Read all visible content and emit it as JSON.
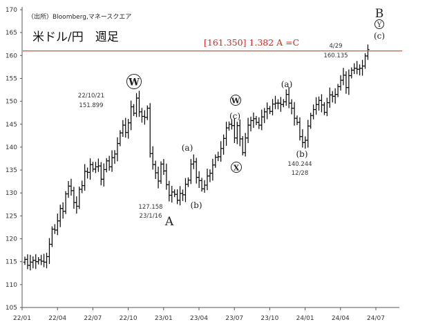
{
  "header": {
    "source": "（出所）Bloomberg,マネースクエア",
    "title": "米ドル/円　週足"
  },
  "target_label": "[161.350] 1.382 A =C",
  "chart_data": {
    "type": "ohlc",
    "xlabel": "",
    "ylabel": "",
    "x_ticks": [
      "22/01",
      "22/04",
      "22/07",
      "22/10",
      "23/01",
      "23/04",
      "23/07",
      "23/10",
      "24/01",
      "24/04",
      "24/07"
    ],
    "y_ticks": [
      105,
      110,
      115,
      120,
      125,
      130,
      135,
      140,
      145,
      150,
      155,
      160,
      165,
      170
    ],
    "ylim": [
      105,
      170
    ],
    "grid": false,
    "horizontal_line": 161.0,
    "series_close": [
      115.5,
      114.2,
      114.9,
      115.3,
      115.0,
      115.4,
      115.1,
      114.9,
      116.1,
      118.8,
      122.1,
      121.9,
      123.9,
      126.6,
      126.0,
      129.8,
      131.5,
      130.5,
      127.9,
      127.1,
      130.8,
      131.6,
      134.7,
      134.5,
      136.2,
      135.2,
      135.7,
      135.9,
      133.0,
      135.1,
      137.0,
      135.7,
      137.7,
      138.5,
      140.8,
      143.1,
      144.8,
      143.2,
      145.3,
      148.8,
      147.4,
      150.7,
      147.7,
      146.7,
      146.5,
      148.5,
      138.6,
      136.2,
      134.4,
      132.6,
      136.3,
      134.8,
      131.8,
      129.5,
      130.2,
      129.7,
      128.4,
      129.9,
      129.6,
      131.9,
      132.8,
      136.3,
      136.8,
      133.4,
      132.7,
      130.9,
      131.7,
      133.7,
      134.3,
      136.1,
      137.8,
      137.9,
      139.7,
      141.9,
      144.2,
      145.0,
      144.7,
      142.0,
      144.7,
      141.8,
      138.8,
      142.0,
      144.8,
      145.8,
      146.2,
      145.4,
      144.8,
      146.6,
      147.7,
      148.4,
      147.8,
      149.4,
      149.6,
      149.6,
      149.3,
      149.9,
      151.5,
      149.6,
      148.5,
      146.3,
      145.4,
      142.3,
      141.0,
      141.5,
      144.6,
      146.9,
      148.2,
      149.3,
      150.2,
      149.2,
      147.6,
      149.7,
      151.4,
      151.1,
      151.5,
      153.2,
      154.6,
      155.7,
      153.0,
      155.6,
      156.8,
      157.2,
      157.0,
      157.2,
      157.7,
      159.9,
      161.3
    ]
  },
  "annotations": {
    "w_label": "W",
    "w_date": "22/10/21",
    "w_value": "151.899",
    "a_value": "127.158",
    "a_date": "23/1/16",
    "a_label": "A",
    "a1": "(a)",
    "b1": "(b)",
    "w2": "W",
    "c1": "(c)",
    "x_label": "X",
    "a2": "(a)",
    "b2": "(b)",
    "b2_value": "140.244",
    "b2_date": "12/28",
    "peak_date": "4/29",
    "peak_value": "160.135",
    "b_label": "B",
    "y_label": "Y",
    "c2": "(c)"
  }
}
